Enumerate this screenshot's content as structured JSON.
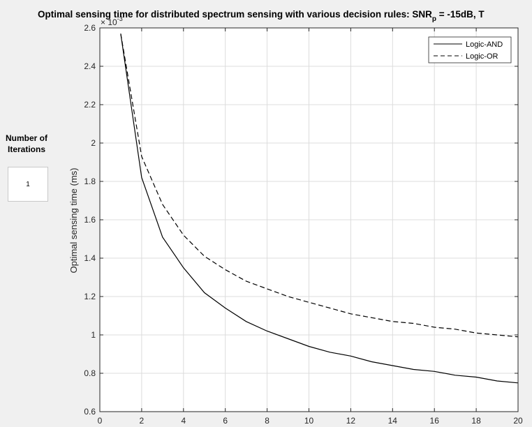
{
  "side_panel": {
    "label_line1": "Number of",
    "label_line2": "Iterations",
    "iterations_value": "1"
  },
  "chart_data": {
    "type": "line",
    "title_main": "Optimal sensing time for distributed spectrum sensing with various decision rules: SNR",
    "title_subscript": "p",
    "title_tail": " = -15dB, T",
    "ylabel": "Optimal sensing time (ms)",
    "xlabel": "",
    "y_exponent_base": "× 10",
    "y_exponent_power": "-3",
    "xlim": [
      0,
      20
    ],
    "ylim": [
      0.6,
      2.6
    ],
    "x_ticks": [
      0,
      2,
      4,
      6,
      8,
      10,
      12,
      14,
      16,
      18,
      20
    ],
    "y_ticks": [
      0.6,
      0.8,
      1,
      1.2,
      1.4,
      1.6,
      1.8,
      2,
      2.2,
      2.4,
      2.6
    ],
    "x_tick_labels": [
      "0",
      "2",
      "4",
      "6",
      "8",
      "10",
      "12",
      "14",
      "16",
      "18",
      "20"
    ],
    "y_tick_labels": [
      "0.6",
      "0.8",
      "1",
      "1.2",
      "1.4",
      "1.6",
      "1.8",
      "2",
      "2.2",
      "2.4",
      "2.6"
    ],
    "grid": true,
    "legend_position": "top-right",
    "x": [
      1,
      2,
      3,
      4,
      5,
      6,
      7,
      8,
      9,
      10,
      11,
      12,
      13,
      14,
      15,
      16,
      17,
      18,
      19,
      20
    ],
    "series": [
      {
        "name": "Logic-AND",
        "line_style": "solid",
        "color": "#000000",
        "values": [
          2.57,
          1.82,
          1.51,
          1.35,
          1.22,
          1.14,
          1.07,
          1.02,
          0.98,
          0.94,
          0.91,
          0.89,
          0.86,
          0.84,
          0.82,
          0.81,
          0.79,
          0.78,
          0.76,
          0.75
        ]
      },
      {
        "name": "Logic-OR",
        "line_style": "dashed",
        "color": "#000000",
        "values": [
          2.57,
          1.93,
          1.68,
          1.52,
          1.41,
          1.34,
          1.28,
          1.24,
          1.2,
          1.17,
          1.14,
          1.11,
          1.09,
          1.07,
          1.06,
          1.04,
          1.03,
          1.01,
          1.0,
          0.99
        ]
      }
    ]
  }
}
